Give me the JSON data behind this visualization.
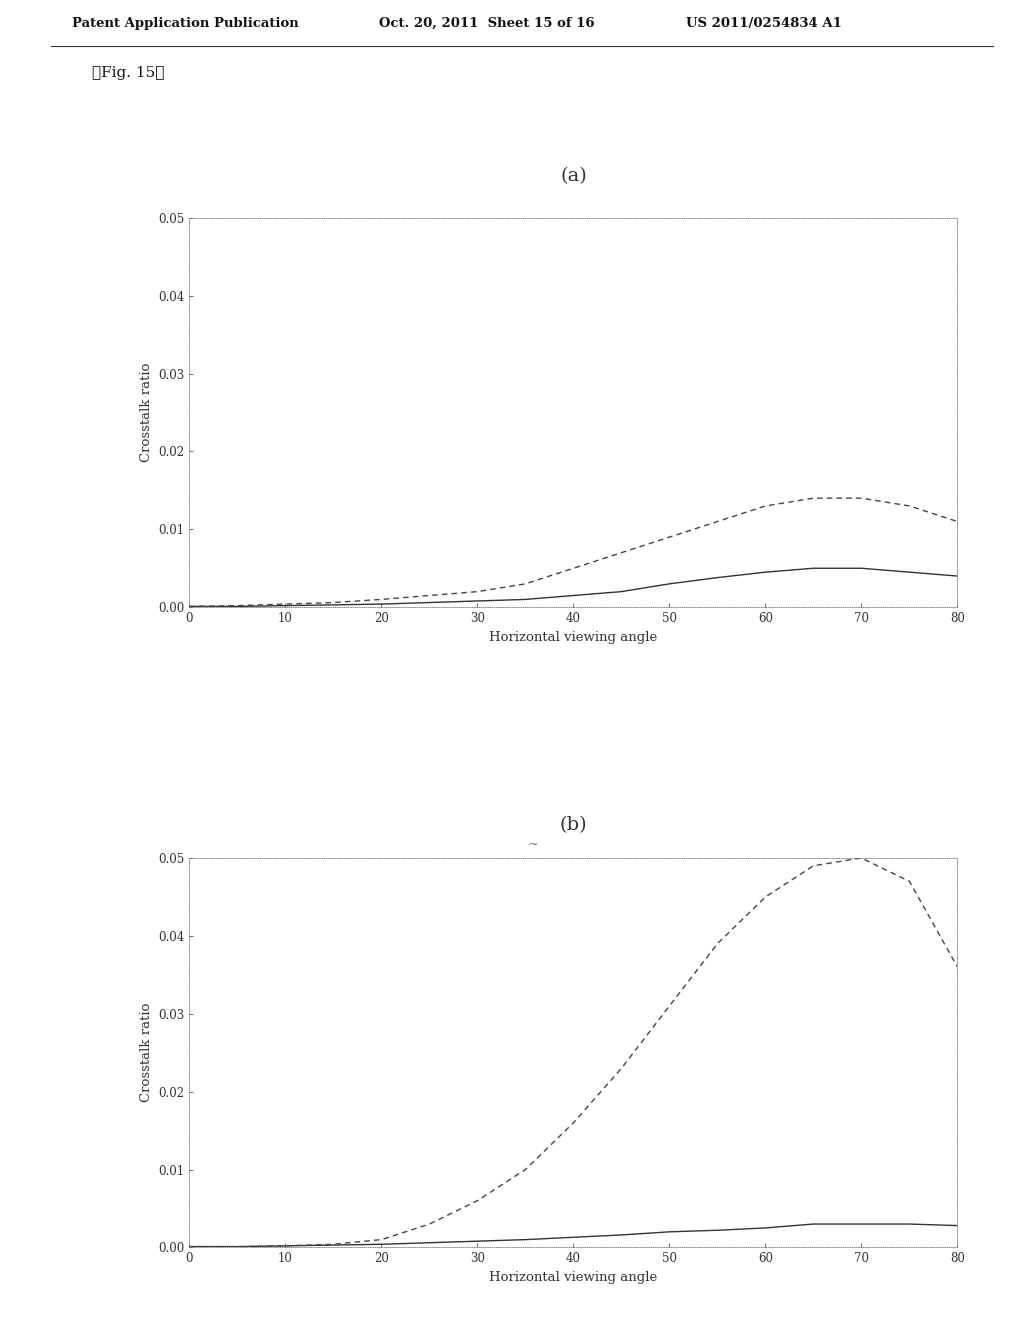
{
  "header_left": "Patent Application Publication",
  "header_mid": "Oct. 20, 2011  Sheet 15 of 16",
  "header_right": "US 2011/0254834 A1",
  "fig_label": "『Fig. 15』",
  "subplot_a_title": "(a)",
  "subplot_b_title": "(b)",
  "xlabel": "Horizontal viewing angle",
  "ylabel": "Crosstalk ratio",
  "xlim": [
    0,
    80
  ],
  "ylim": [
    0.0,
    0.05
  ],
  "yticks": [
    0.0,
    0.01,
    0.02,
    0.03,
    0.04,
    0.05
  ],
  "xticks": [
    0,
    10,
    20,
    30,
    40,
    50,
    60,
    70,
    80
  ],
  "background_color": "#ffffff",
  "plot_a": {
    "x": [
      0,
      5,
      10,
      15,
      20,
      25,
      30,
      35,
      40,
      45,
      50,
      55,
      60,
      65,
      70,
      75,
      80
    ],
    "solid": [
      0.0001,
      0.0001,
      0.0002,
      0.0003,
      0.0004,
      0.0006,
      0.0008,
      0.001,
      0.0015,
      0.002,
      0.003,
      0.0038,
      0.0045,
      0.005,
      0.005,
      0.0045,
      0.004
    ],
    "dashed": [
      0.0001,
      0.0002,
      0.0004,
      0.0006,
      0.001,
      0.0015,
      0.002,
      0.003,
      0.005,
      0.007,
      0.009,
      0.011,
      0.013,
      0.014,
      0.014,
      0.013,
      0.011
    ]
  },
  "plot_b": {
    "x": [
      0,
      5,
      10,
      15,
      20,
      25,
      30,
      35,
      40,
      45,
      50,
      55,
      60,
      65,
      70,
      75,
      80
    ],
    "solid": [
      0.0001,
      0.0001,
      0.0002,
      0.0003,
      0.0004,
      0.0006,
      0.0008,
      0.001,
      0.0013,
      0.0016,
      0.002,
      0.0022,
      0.0025,
      0.003,
      0.003,
      0.003,
      0.0028
    ],
    "dashed": [
      0.0001,
      0.0001,
      0.0002,
      0.0004,
      0.001,
      0.003,
      0.006,
      0.01,
      0.016,
      0.023,
      0.031,
      0.039,
      0.045,
      0.049,
      0.05,
      0.047,
      0.036
    ]
  }
}
